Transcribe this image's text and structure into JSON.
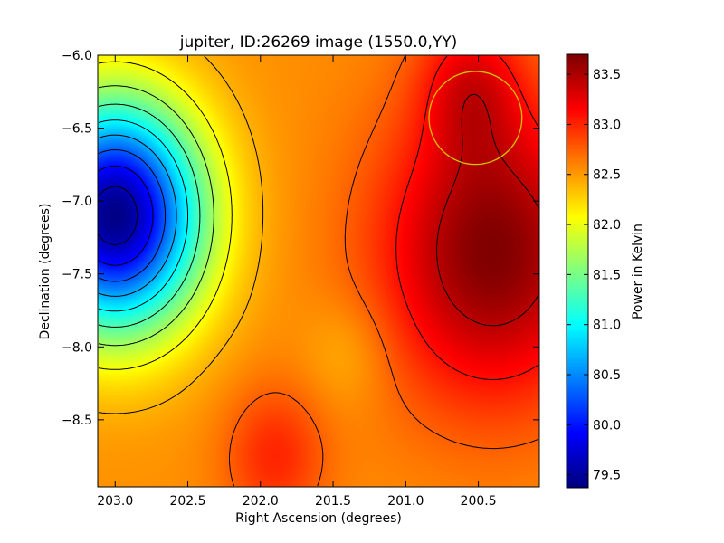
{
  "chart_data": {
    "type": "heatmap",
    "title": "jupiter, ID:26269 image (1550.0,YY)",
    "xlabel": "Right Ascension (degrees)",
    "ylabel": "Declination (degrees)",
    "colorbar_label": "Power in Kelvin",
    "xlim": [
      203.12,
      200.08
    ],
    "ylim": [
      -8.96,
      -6.0
    ],
    "x_ticks": [
      203.0,
      202.5,
      202.0,
      201.5,
      201.0,
      200.5
    ],
    "x_tick_labels": [
      "203.0",
      "202.5",
      "202.0",
      "201.5",
      "201.0",
      "200.5"
    ],
    "y_ticks": [
      -6.0,
      -6.5,
      -7.0,
      -7.5,
      -8.0,
      -8.5
    ],
    "y_tick_labels": [
      "−6.0",
      "−6.5",
      "−7.0",
      "−7.5",
      "−8.0",
      "−8.5"
    ],
    "colorbar_range": [
      79.37,
      83.7
    ],
    "colorbar_ticks": [
      79.5,
      80.0,
      80.5,
      81.0,
      81.5,
      82.0,
      82.5,
      83.0,
      83.5
    ],
    "colorbar_tick_labels": [
      "79.5",
      "80.0",
      "80.5",
      "81.0",
      "81.5",
      "82.0",
      "82.5",
      "83.0",
      "83.5"
    ],
    "colormap": "jet",
    "colors": {
      "contour": "#000000",
      "circle": "#d4c400"
    },
    "features": [
      {
        "kind": "minimum",
        "ra": 203.0,
        "dec": -7.1,
        "value": 79.4
      },
      {
        "kind": "maximum",
        "ra": 200.4,
        "dec": -7.35,
        "value": 83.7
      },
      {
        "kind": "local-max",
        "ra": 201.9,
        "dec": -8.75,
        "value": 83.0
      },
      {
        "kind": "local-max",
        "ra": 200.55,
        "dec": -6.2,
        "value": 83.1
      },
      {
        "kind": "local-min",
        "ra": 201.4,
        "dec": -8.05,
        "value": 82.55
      }
    ],
    "circle": {
      "ra": 200.52,
      "dec": -6.43,
      "radius_deg": 0.32
    }
  }
}
